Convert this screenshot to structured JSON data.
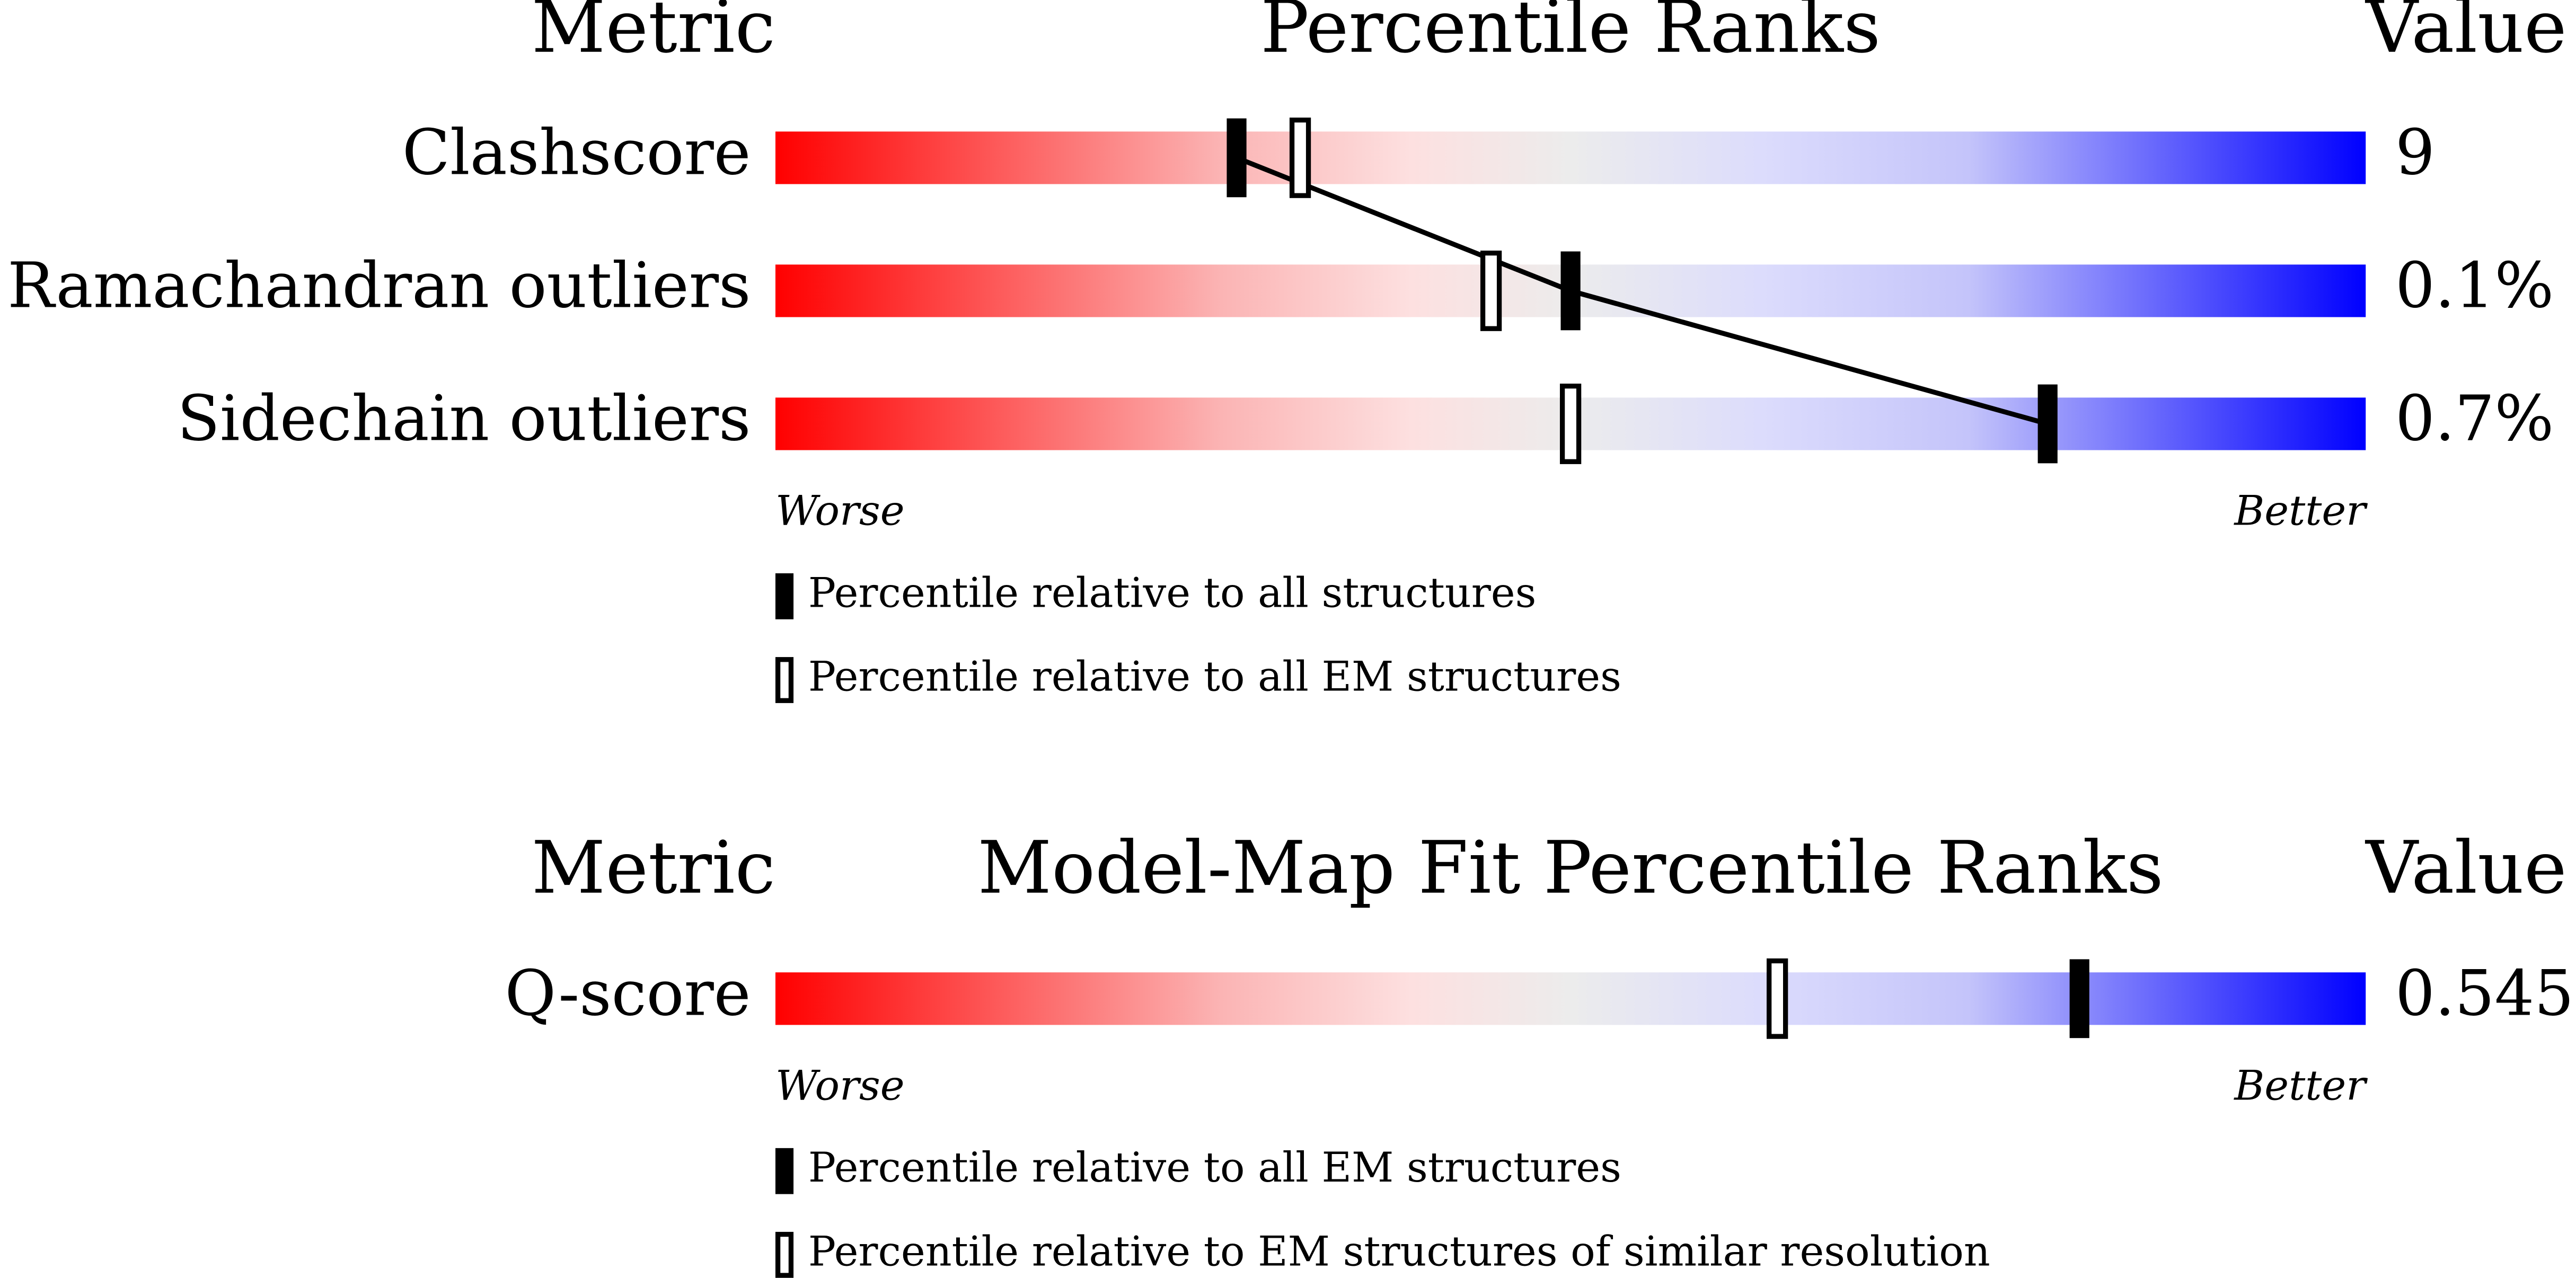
{
  "chart_data": [
    {
      "type": "percentile",
      "header_metric": "Metric",
      "title": "Percentile Ranks",
      "header_value": "Value",
      "categories": [
        "Clashscore",
        "Ramachandran outliers",
        "Sidechain outliers"
      ],
      "value_labels": [
        "9",
        "0.1%",
        "0.7%"
      ],
      "series": [
        {
          "name": "Percentile relative to all structures",
          "style": "filled",
          "connect": true,
          "values": [
            29,
            50,
            80
          ]
        },
        {
          "name": "Percentile relative to all EM structures",
          "style": "open",
          "connect": false,
          "values": [
            33,
            45,
            50
          ]
        }
      ],
      "xlim": [
        0,
        100
      ],
      "worse_label": "Worse",
      "better_label": "Better"
    },
    {
      "type": "percentile",
      "header_metric": "Metric",
      "title": "Model-Map Fit Percentile Ranks",
      "header_value": "Value",
      "categories": [
        "Q-score"
      ],
      "value_labels": [
        "0.545"
      ],
      "series": [
        {
          "name": "Percentile relative to all EM structures",
          "style": "filled",
          "connect": false,
          "values": [
            82
          ]
        },
        {
          "name": "Percentile relative to EM structures of similar resolution",
          "style": "open",
          "connect": false,
          "values": [
            63
          ]
        }
      ],
      "xlim": [
        0,
        100
      ],
      "worse_label": "Worse",
      "better_label": "Better"
    }
  ]
}
